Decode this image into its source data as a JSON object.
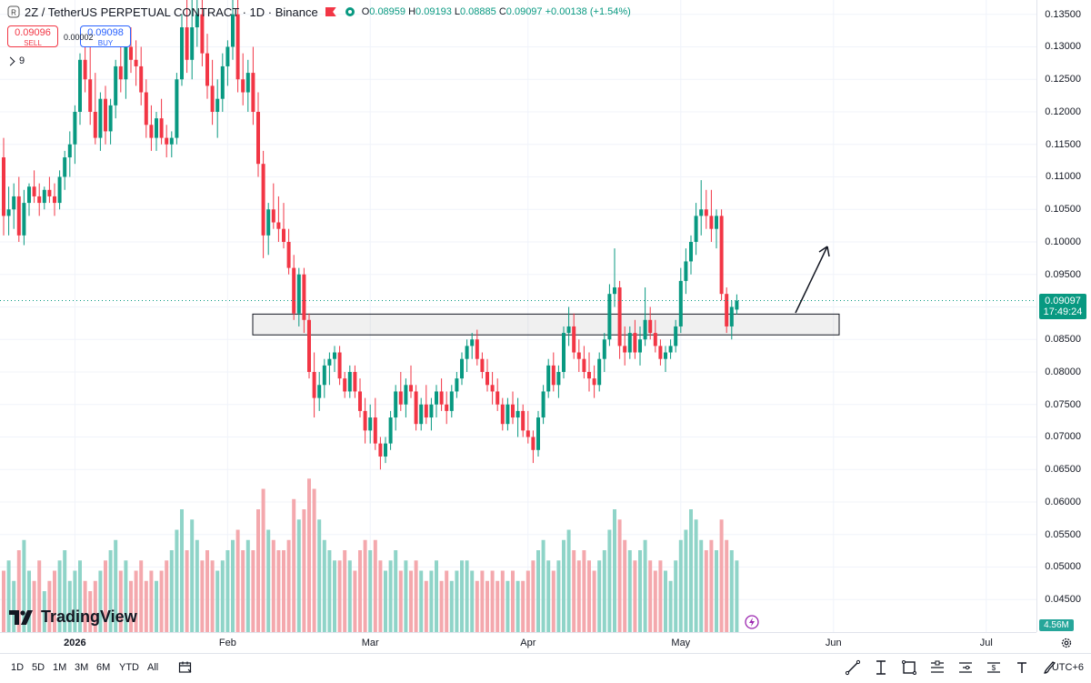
{
  "header": {
    "symbol_title": "2Z / TetherUS PERPETUAL CONTRACT · 1D · Binance",
    "ohlc": {
      "o_label": "O",
      "o": "0.08959",
      "h_label": "H",
      "h": "0.09193",
      "l_label": "L",
      "l": "0.08885",
      "c_label": "C",
      "c": "0.09097",
      "change": "+0.00138 (+1.54%)"
    }
  },
  "trade": {
    "sell_price": "0.09096",
    "sell_label": "SELL",
    "buy_price": "0.09098",
    "buy_label": "BUY",
    "spread": "0.00002"
  },
  "indicators": {
    "count": "9"
  },
  "branding": {
    "logo": "TradingView"
  },
  "price_axis": {
    "ticks": [
      "0.13500",
      "0.13000",
      "0.12500",
      "0.12000",
      "0.11500",
      "0.11000",
      "0.10500",
      "0.10000",
      "0.09500",
      "0.09000",
      "0.08500",
      "0.08000",
      "0.07500",
      "0.07000",
      "0.06500",
      "0.06000",
      "0.05500",
      "0.05000",
      "0.04500"
    ],
    "last_price": "0.09097",
    "countdown": "17:49:24",
    "volume_value": "4.56M"
  },
  "time_axis": {
    "labels": [
      {
        "text": "2026",
        "bold": true
      },
      {
        "text": "Feb"
      },
      {
        "text": "Mar"
      },
      {
        "text": "Apr"
      },
      {
        "text": "May"
      },
      {
        "text": "Jun"
      },
      {
        "text": "Jul"
      }
    ]
  },
  "bottom_bar": {
    "ranges": [
      "1D",
      "5D",
      "1M",
      "3M",
      "6M",
      "YTD",
      "All"
    ],
    "timezone": "UTC+6",
    "tools": [
      "trend-line-icon",
      "fib-icon",
      "rectangle-icon",
      "long-position-icon",
      "price-range-icon",
      "measure-icon",
      "text-icon",
      "brush-icon"
    ]
  },
  "colors": {
    "up": "#089981",
    "down": "#f23645",
    "vol_up": "#8fd4c8",
    "vol_down": "#f4a8ad",
    "accent": "#2962ff"
  },
  "chart_data": {
    "type": "candlestick",
    "interval": "1D",
    "y_range": [
      0.04,
      0.1372
    ],
    "support_zone": [
      0.0857,
      0.0889
    ],
    "candles": [
      [
        0.113,
        0.116,
        0.101,
        0.104
      ],
      [
        0.104,
        0.1085,
        0.101,
        0.105
      ],
      [
        0.105,
        0.109,
        0.102,
        0.107
      ],
      [
        0.107,
        0.11,
        0.1,
        0.101
      ],
      [
        0.101,
        0.108,
        0.0995,
        0.106
      ],
      [
        0.106,
        0.109,
        0.104,
        0.1085
      ],
      [
        0.1085,
        0.111,
        0.106,
        0.107
      ],
      [
        0.107,
        0.109,
        0.104,
        0.106
      ],
      [
        0.106,
        0.1085,
        0.105,
        0.108
      ],
      [
        0.108,
        0.11,
        0.106,
        0.107
      ],
      [
        0.107,
        0.109,
        0.104,
        0.106
      ],
      [
        0.106,
        0.111,
        0.105,
        0.11
      ],
      [
        0.11,
        0.114,
        0.108,
        0.113
      ],
      [
        0.113,
        0.117,
        0.11,
        0.115
      ],
      [
        0.115,
        0.121,
        0.112,
        0.12
      ],
      [
        0.12,
        0.129,
        0.118,
        0.128
      ],
      [
        0.128,
        0.132,
        0.123,
        0.125
      ],
      [
        0.125,
        0.13,
        0.118,
        0.12
      ],
      [
        0.12,
        0.126,
        0.115,
        0.116
      ],
      [
        0.116,
        0.123,
        0.114,
        0.122
      ],
      [
        0.122,
        0.124,
        0.115,
        0.117
      ],
      [
        0.117,
        0.122,
        0.115,
        0.121
      ],
      [
        0.121,
        0.128,
        0.119,
        0.127
      ],
      [
        0.127,
        0.131,
        0.123,
        0.125
      ],
      [
        0.125,
        0.132,
        0.122,
        0.13
      ],
      [
        0.13,
        0.133,
        0.126,
        0.128
      ],
      [
        0.128,
        0.131,
        0.124,
        0.127
      ],
      [
        0.127,
        0.13,
        0.121,
        0.123
      ],
      [
        0.123,
        0.125,
        0.116,
        0.118
      ],
      [
        0.118,
        0.121,
        0.114,
        0.116
      ],
      [
        0.116,
        0.12,
        0.114,
        0.119
      ],
      [
        0.119,
        0.122,
        0.115,
        0.116
      ],
      [
        0.116,
        0.118,
        0.113,
        0.115
      ],
      [
        0.115,
        0.117,
        0.113,
        0.116
      ],
      [
        0.116,
        0.126,
        0.115,
        0.125
      ],
      [
        0.125,
        0.135,
        0.124,
        0.133
      ],
      [
        0.133,
        0.1372,
        0.126,
        0.128
      ],
      [
        0.128,
        0.1372,
        0.125,
        0.133
      ],
      [
        0.133,
        0.1372,
        0.13,
        0.135
      ],
      [
        0.135,
        0.1372,
        0.127,
        0.129
      ],
      [
        0.129,
        0.132,
        0.122,
        0.124
      ],
      [
        0.124,
        0.128,
        0.118,
        0.12
      ],
      [
        0.12,
        0.125,
        0.116,
        0.122
      ],
      [
        0.122,
        0.129,
        0.12,
        0.127
      ],
      [
        0.127,
        0.131,
        0.124,
        0.13
      ],
      [
        0.13,
        0.1372,
        0.128,
        0.135
      ],
      [
        0.135,
        0.1372,
        0.123,
        0.125
      ],
      [
        0.125,
        0.129,
        0.121,
        0.123
      ],
      [
        0.123,
        0.128,
        0.12,
        0.126
      ],
      [
        0.126,
        0.13,
        0.118,
        0.12
      ],
      [
        0.12,
        0.123,
        0.11,
        0.112
      ],
      [
        0.112,
        0.114,
        0.0975,
        0.101
      ],
      [
        0.101,
        0.106,
        0.098,
        0.105
      ],
      [
        0.105,
        0.109,
        0.102,
        0.103
      ],
      [
        0.103,
        0.107,
        0.1,
        0.102
      ],
      [
        0.102,
        0.106,
        0.099,
        0.1
      ],
      [
        0.1,
        0.102,
        0.095,
        0.096
      ],
      [
        0.096,
        0.098,
        0.088,
        0.089
      ],
      [
        0.089,
        0.096,
        0.087,
        0.095
      ],
      [
        0.095,
        0.096,
        0.086,
        0.088
      ],
      [
        0.088,
        0.089,
        0.079,
        0.08
      ],
      [
        0.08,
        0.083,
        0.073,
        0.076
      ],
      [
        0.076,
        0.08,
        0.074,
        0.078
      ],
      [
        0.078,
        0.082,
        0.076,
        0.081
      ],
      [
        0.081,
        0.083,
        0.078,
        0.082
      ],
      [
        0.082,
        0.084,
        0.08,
        0.083
      ],
      [
        0.083,
        0.084,
        0.078,
        0.079
      ],
      [
        0.079,
        0.08,
        0.076,
        0.077
      ],
      [
        0.077,
        0.081,
        0.076,
        0.08
      ],
      [
        0.08,
        0.081,
        0.076,
        0.077
      ],
      [
        0.077,
        0.079,
        0.073,
        0.074
      ],
      [
        0.074,
        0.076,
        0.069,
        0.071
      ],
      [
        0.071,
        0.075,
        0.069,
        0.073
      ],
      [
        0.073,
        0.076,
        0.068,
        0.069
      ],
      [
        0.069,
        0.07,
        0.065,
        0.067
      ],
      [
        0.067,
        0.07,
        0.066,
        0.069
      ],
      [
        0.069,
        0.074,
        0.068,
        0.073
      ],
      [
        0.073,
        0.078,
        0.071,
        0.077
      ],
      [
        0.077,
        0.08,
        0.074,
        0.075
      ],
      [
        0.075,
        0.079,
        0.073,
        0.078
      ],
      [
        0.078,
        0.081,
        0.076,
        0.077
      ],
      [
        0.077,
        0.078,
        0.071,
        0.072
      ],
      [
        0.072,
        0.076,
        0.071,
        0.075
      ],
      [
        0.075,
        0.078,
        0.072,
        0.073
      ],
      [
        0.073,
        0.076,
        0.071,
        0.075
      ],
      [
        0.075,
        0.078,
        0.073,
        0.077
      ],
      [
        0.077,
        0.079,
        0.074,
        0.075
      ],
      [
        0.075,
        0.077,
        0.072,
        0.074
      ],
      [
        0.074,
        0.078,
        0.073,
        0.077
      ],
      [
        0.077,
        0.08,
        0.076,
        0.079
      ],
      [
        0.079,
        0.083,
        0.078,
        0.082
      ],
      [
        0.082,
        0.085,
        0.08,
        0.084
      ],
      [
        0.084,
        0.086,
        0.082,
        0.085
      ],
      [
        0.085,
        0.0865,
        0.081,
        0.082
      ],
      [
        0.082,
        0.083,
        0.079,
        0.08
      ],
      [
        0.08,
        0.082,
        0.077,
        0.078
      ],
      [
        0.078,
        0.08,
        0.075,
        0.077
      ],
      [
        0.077,
        0.079,
        0.074,
        0.075
      ],
      [
        0.075,
        0.076,
        0.071,
        0.072
      ],
      [
        0.072,
        0.076,
        0.071,
        0.075
      ],
      [
        0.075,
        0.077,
        0.072,
        0.073
      ],
      [
        0.073,
        0.076,
        0.07,
        0.074
      ],
      [
        0.074,
        0.075,
        0.07,
        0.071
      ],
      [
        0.071,
        0.074,
        0.069,
        0.07
      ],
      [
        0.07,
        0.071,
        0.066,
        0.068
      ],
      [
        0.068,
        0.074,
        0.067,
        0.073
      ],
      [
        0.073,
        0.078,
        0.072,
        0.077
      ],
      [
        0.077,
        0.082,
        0.076,
        0.081
      ],
      [
        0.081,
        0.083,
        0.077,
        0.078
      ],
      [
        0.078,
        0.081,
        0.076,
        0.08
      ],
      [
        0.08,
        0.087,
        0.079,
        0.086
      ],
      [
        0.086,
        0.09,
        0.084,
        0.087
      ],
      [
        0.087,
        0.089,
        0.082,
        0.083
      ],
      [
        0.083,
        0.085,
        0.08,
        0.082
      ],
      [
        0.082,
        0.084,
        0.079,
        0.08
      ],
      [
        0.08,
        0.083,
        0.077,
        0.079
      ],
      [
        0.079,
        0.081,
        0.076,
        0.078
      ],
      [
        0.078,
        0.083,
        0.077,
        0.082
      ],
      [
        0.082,
        0.086,
        0.08,
        0.085
      ],
      [
        0.085,
        0.0935,
        0.084,
        0.092
      ],
      [
        0.092,
        0.099,
        0.09,
        0.093
      ],
      [
        0.093,
        0.094,
        0.082,
        0.084
      ],
      [
        0.084,
        0.087,
        0.081,
        0.083
      ],
      [
        0.083,
        0.087,
        0.082,
        0.086
      ],
      [
        0.086,
        0.088,
        0.082,
        0.083
      ],
      [
        0.083,
        0.087,
        0.081,
        0.085
      ],
      [
        0.085,
        0.093,
        0.084,
        0.088
      ],
      [
        0.088,
        0.09,
        0.085,
        0.086
      ],
      [
        0.086,
        0.088,
        0.083,
        0.084
      ],
      [
        0.084,
        0.085,
        0.081,
        0.082
      ],
      [
        0.082,
        0.084,
        0.08,
        0.083
      ],
      [
        0.083,
        0.085,
        0.082,
        0.084
      ],
      [
        0.084,
        0.088,
        0.083,
        0.087
      ],
      [
        0.087,
        0.096,
        0.086,
        0.094
      ],
      [
        0.094,
        0.099,
        0.092,
        0.097
      ],
      [
        0.097,
        0.101,
        0.095,
        0.1
      ],
      [
        0.1,
        0.106,
        0.098,
        0.104
      ],
      [
        0.104,
        0.1095,
        0.101,
        0.105
      ],
      [
        0.105,
        0.108,
        0.102,
        0.104
      ],
      [
        0.104,
        0.108,
        0.1,
        0.102
      ],
      [
        0.102,
        0.105,
        0.099,
        0.104
      ],
      [
        0.104,
        0.105,
        0.091,
        0.092
      ],
      [
        0.092,
        0.093,
        0.086,
        0.087
      ],
      [
        0.087,
        0.091,
        0.085,
        0.09
      ],
      [
        0.08959,
        0.09193,
        0.08885,
        0.09097
      ]
    ],
    "volumes": [
      0.6,
      0.7,
      0.5,
      0.8,
      0.9,
      0.6,
      0.5,
      0.7,
      0.4,
      0.5,
      0.6,
      0.7,
      0.8,
      0.5,
      0.6,
      0.7,
      0.5,
      0.4,
      0.5,
      0.6,
      0.7,
      0.8,
      0.9,
      0.6,
      0.7,
      0.5,
      0.6,
      0.7,
      0.5,
      0.6,
      0.5,
      0.6,
      0.7,
      0.8,
      1.0,
      1.2,
      0.8,
      1.1,
      0.9,
      0.7,
      0.8,
      0.7,
      0.6,
      0.7,
      0.8,
      0.9,
      1.0,
      0.8,
      0.9,
      0.8,
      1.2,
      1.4,
      1.0,
      0.9,
      0.8,
      0.8,
      0.9,
      1.3,
      1.1,
      1.2,
      1.5,
      1.4,
      1.1,
      0.9,
      0.8,
      0.7,
      0.7,
      0.8,
      0.7,
      0.6,
      0.8,
      0.9,
      0.8,
      0.9,
      0.7,
      0.6,
      0.7,
      0.8,
      0.6,
      0.7,
      0.6,
      0.7,
      0.6,
      0.5,
      0.6,
      0.7,
      0.5,
      0.6,
      0.5,
      0.6,
      0.7,
      0.7,
      0.6,
      0.5,
      0.6,
      0.5,
      0.6,
      0.5,
      0.6,
      0.5,
      0.6,
      0.5,
      0.5,
      0.6,
      0.7,
      0.8,
      0.9,
      0.7,
      0.6,
      0.7,
      0.9,
      1.0,
      0.8,
      0.7,
      0.8,
      0.7,
      0.6,
      0.7,
      0.8,
      1.0,
      1.2,
      1.1,
      0.9,
      0.8,
      0.7,
      0.8,
      0.9,
      0.7,
      0.6,
      0.7,
      0.6,
      0.5,
      0.7,
      0.9,
      1.0,
      1.2,
      1.1,
      0.9,
      0.8,
      0.9,
      0.8,
      1.1,
      0.9,
      0.8,
      0.7
    ]
  }
}
